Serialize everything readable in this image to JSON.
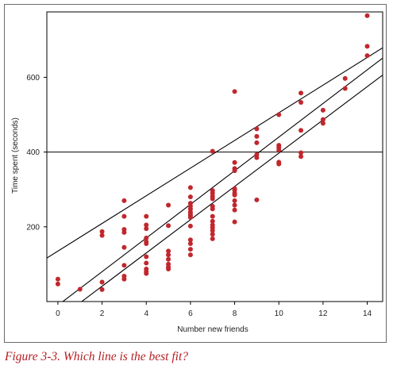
{
  "caption": "Figure 3-3. Which line is the best fit?",
  "chart_data": {
    "type": "scatter",
    "xlabel": "Number new friends",
    "ylabel": "Time spent (seconds)",
    "xlim": [
      -0.5,
      14.7
    ],
    "ylim": [
      0,
      775
    ],
    "xticks": [
      0,
      2,
      4,
      6,
      8,
      10,
      12,
      14
    ],
    "yticks": [
      200,
      400,
      600
    ],
    "point_color": "#c1272d",
    "line_color": "#000000",
    "points": [
      [
        0,
        60
      ],
      [
        0,
        47
      ],
      [
        1,
        33
      ],
      [
        2,
        187
      ],
      [
        2,
        177
      ],
      [
        2,
        52
      ],
      [
        2,
        32
      ],
      [
        3,
        270
      ],
      [
        3,
        228
      ],
      [
        3,
        193
      ],
      [
        3,
        185
      ],
      [
        3,
        145
      ],
      [
        3,
        97
      ],
      [
        3,
        68
      ],
      [
        3,
        60
      ],
      [
        4,
        228
      ],
      [
        4,
        205
      ],
      [
        4,
        195
      ],
      [
        4,
        170
      ],
      [
        4,
        160
      ],
      [
        4,
        155
      ],
      [
        4,
        120
      ],
      [
        4,
        103
      ],
      [
        4,
        87
      ],
      [
        4,
        80
      ],
      [
        4,
        75
      ],
      [
        5,
        258
      ],
      [
        5,
        203
      ],
      [
        5,
        135
      ],
      [
        5,
        125
      ],
      [
        5,
        113
      ],
      [
        5,
        100
      ],
      [
        5,
        92
      ],
      [
        5,
        87
      ],
      [
        6,
        305
      ],
      [
        6,
        280
      ],
      [
        6,
        263
      ],
      [
        6,
        255
      ],
      [
        6,
        248
      ],
      [
        6,
        240
      ],
      [
        6,
        235
      ],
      [
        6,
        230
      ],
      [
        6,
        225
      ],
      [
        6,
        202
      ],
      [
        6,
        165
      ],
      [
        6,
        155
      ],
      [
        6,
        140
      ],
      [
        6,
        125
      ],
      [
        7,
        402
      ],
      [
        7,
        297
      ],
      [
        7,
        290
      ],
      [
        7,
        282
      ],
      [
        7,
        275
      ],
      [
        7,
        255
      ],
      [
        7,
        248
      ],
      [
        7,
        228
      ],
      [
        7,
        215
      ],
      [
        7,
        205
      ],
      [
        7,
        198
      ],
      [
        7,
        190
      ],
      [
        7,
        180
      ],
      [
        7,
        168
      ],
      [
        8,
        562
      ],
      [
        8,
        372
      ],
      [
        8,
        356
      ],
      [
        8,
        350
      ],
      [
        8,
        302
      ],
      [
        8,
        298
      ],
      [
        8,
        290
      ],
      [
        8,
        285
      ],
      [
        8,
        270
      ],
      [
        8,
        258
      ],
      [
        8,
        245
      ],
      [
        8,
        213
      ],
      [
        9,
        462
      ],
      [
        9,
        442
      ],
      [
        9,
        425
      ],
      [
        9,
        393
      ],
      [
        9,
        385
      ],
      [
        9,
        272
      ],
      [
        10,
        500
      ],
      [
        10,
        418
      ],
      [
        10,
        412
      ],
      [
        10,
        405
      ],
      [
        10,
        373
      ],
      [
        10,
        368
      ],
      [
        11,
        558
      ],
      [
        11,
        533
      ],
      [
        11,
        458
      ],
      [
        11,
        398
      ],
      [
        11,
        388
      ],
      [
        12,
        512
      ],
      [
        12,
        487
      ],
      [
        12,
        477
      ],
      [
        13,
        597
      ],
      [
        13,
        570
      ],
      [
        14,
        765
      ],
      [
        14,
        683
      ],
      [
        14,
        658
      ]
    ],
    "lines": [
      {
        "intercept": 400,
        "slope": 0
      },
      {
        "intercept": 135,
        "slope": 37
      },
      {
        "intercept": -10,
        "slope": 45
      },
      {
        "intercept": -48,
        "slope": 44.5
      }
    ]
  }
}
